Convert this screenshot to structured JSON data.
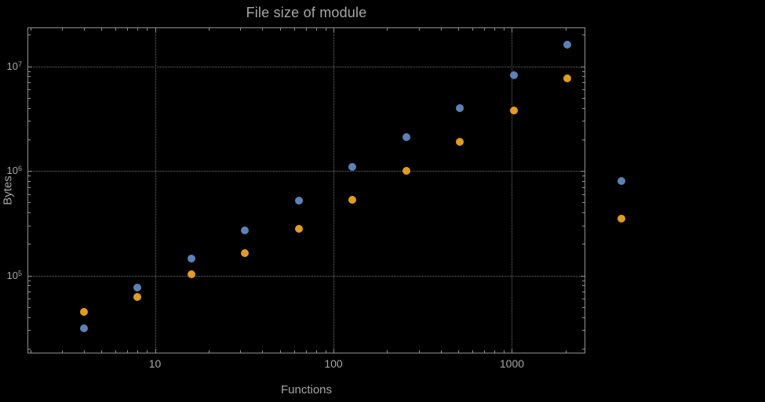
{
  "chart_data": {
    "type": "scatter",
    "title": "File size of module",
    "xlabel": "Functions",
    "ylabel": "Bytes",
    "x_scale": "log",
    "y_scale": "log",
    "x": [
      4,
      8,
      16,
      32,
      64,
      128,
      256,
      512,
      1024,
      2048,
      4096
    ],
    "series": [
      {
        "name": "blue",
        "color": "#5E81B5",
        "values": [
          31000,
          76000,
          145000,
          270000,
          520000,
          1100000,
          2100000,
          4000000,
          8200000,
          16000000,
          800000
        ]
      },
      {
        "name": "orange",
        "color": "#E19C24",
        "values": [
          45000,
          62000,
          103000,
          165000,
          280000,
          530000,
          1000000,
          1900000,
          3800000,
          7600000,
          350000
        ]
      }
    ],
    "x_ticks": {
      "values": [
        10,
        100,
        1000
      ],
      "labels": [
        "10",
        "100",
        "1000"
      ]
    },
    "y_ticks": {
      "values": [
        100000,
        1000000,
        10000000
      ],
      "labels": [
        "10^5",
        "10^6",
        "10^7"
      ]
    },
    "x_range": [
      1.93,
      2551
    ],
    "y_range": [
      18300,
      23500000
    ],
    "grid": "dotted",
    "legend": "none",
    "clip_points": false,
    "colors": {
      "background": "#000000",
      "frame": "#8f8f8f",
      "grid": "#6f6f6f",
      "text": "#a6a6a6"
    }
  }
}
